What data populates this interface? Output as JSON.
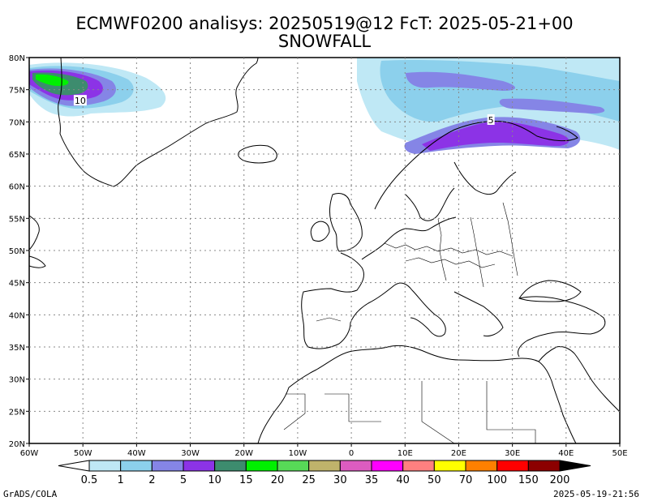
{
  "header": {
    "title_line1": "ECMWF0200 analisys: 20250519@12 FcT: 2025-05-21+00",
    "title_line2": "SNOWFALL"
  },
  "map": {
    "lon_range": [
      -60,
      50
    ],
    "lat_range": [
      20,
      80
    ],
    "lon_ticks": [
      {
        "value": -60,
        "label": "60W"
      },
      {
        "value": -50,
        "label": "50W"
      },
      {
        "value": -40,
        "label": "40W"
      },
      {
        "value": -30,
        "label": "30W"
      },
      {
        "value": -20,
        "label": "20W"
      },
      {
        "value": -10,
        "label": "10W"
      },
      {
        "value": 0,
        "label": "0"
      },
      {
        "value": 10,
        "label": "10E"
      },
      {
        "value": 20,
        "label": "20E"
      },
      {
        "value": 30,
        "label": "30E"
      },
      {
        "value": 40,
        "label": "40E"
      },
      {
        "value": 50,
        "label": "50E"
      }
    ],
    "lat_ticks": [
      {
        "value": 20,
        "label": "20N"
      },
      {
        "value": 25,
        "label": "25N"
      },
      {
        "value": 30,
        "label": "30N"
      },
      {
        "value": 35,
        "label": "35N"
      },
      {
        "value": 40,
        "label": "40N"
      },
      {
        "value": 45,
        "label": "45N"
      },
      {
        "value": 50,
        "label": "50N"
      },
      {
        "value": 55,
        "label": "55N"
      },
      {
        "value": 60,
        "label": "60N"
      },
      {
        "value": 65,
        "label": "65N"
      },
      {
        "value": 70,
        "label": "70N"
      },
      {
        "value": 75,
        "label": "75N"
      },
      {
        "value": 80,
        "label": "80N"
      }
    ],
    "grid": true,
    "contour_labels": [
      {
        "text": "10",
        "lon": -50.5,
        "lat": 73.3
      },
      {
        "text": "5",
        "lon": 26,
        "lat": 70.3
      }
    ]
  },
  "colorbar": {
    "colors": [
      "#ffffff",
      "#bfe8f5",
      "#8cd0ec",
      "#8585e6",
      "#8c33e6",
      "#3d8c6e",
      "#00f000",
      "#57d957",
      "#bfb36b",
      "#dc5cc0",
      "#ff00ff",
      "#ff8080",
      "#ffff00",
      "#ff8000",
      "#ff0000",
      "#8c0000",
      "#000000"
    ],
    "labels": [
      "0.5",
      "1",
      "2",
      "5",
      "10",
      "15",
      "20",
      "25",
      "30",
      "35",
      "40",
      "50",
      "70",
      "100",
      "150",
      "200"
    ]
  },
  "footer": {
    "credit": "GrADS/COLA",
    "timestamp": "2025-05-19-21:56"
  }
}
